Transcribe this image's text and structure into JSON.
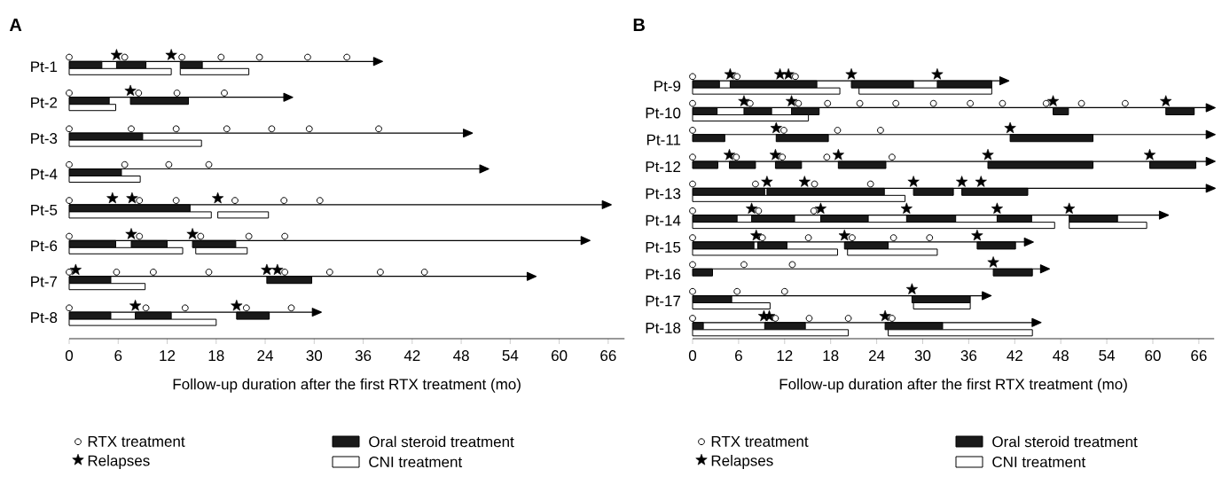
{
  "chart_data": [
    {
      "type": "bar",
      "orientation": "horizontal",
      "title": "A",
      "xlabel": "Follow-up duration after the first RTX treatment (mo)",
      "legend": "bottom",
      "categories": [
        "Pt-1",
        "Pt-2",
        "Pt-3",
        "Pt-4",
        "Pt-5",
        "Pt-6",
        "Pt-7",
        "Pt-8"
      ],
      "xlim": [
        0,
        68
      ],
      "xticks": [
        0,
        6,
        12,
        18,
        24,
        30,
        36,
        42,
        48,
        54,
        60,
        66
      ],
      "series": [
        {
          "type": "lollipop",
          "marker": "triangle",
          "color": "#000000",
          "values": [
            37.5,
            26.5,
            48.5,
            50.5,
            65.5,
            62.9,
            56.3,
            30.0
          ]
        },
        {
          "type": "bar",
          "name": "Oral steroid treatment",
          "color": "#1a1a1a",
          "base": [
            0,
            0,
            0,
            0,
            0,
            0,
            0,
            0
          ],
          "values": [
            4.0,
            4.9,
            9.0,
            6.4,
            14.8,
            5.7,
            5.1,
            5.1
          ]
        },
        {
          "type": "bar",
          "color": "#1a1a1a",
          "base": [
            5.8,
            7.5,
            null,
            null,
            null,
            7.6,
            24.2,
            8.1
          ],
          "values": [
            3.6,
            7.1,
            null,
            null,
            null,
            4.4,
            5.5,
            4.4
          ]
        },
        {
          "type": "bar",
          "color": "#1a1a1a",
          "base": [
            13.6,
            null,
            null,
            null,
            null,
            15.1,
            null,
            20.5
          ],
          "values": [
            2.7,
            null,
            null,
            null,
            null,
            5.3,
            null,
            4.0
          ]
        },
        {
          "type": "bar",
          "name": "CNI treatment",
          "color": "#ffffff",
          "base": [
            0,
            0,
            0,
            0,
            0,
            0,
            0,
            0
          ],
          "values": [
            12.5,
            5.7,
            16.2,
            8.7,
            17.4,
            13.9,
            9.3,
            18.0
          ]
        },
        {
          "type": "bar",
          "color": "#ffffff",
          "base": [
            13.6,
            null,
            null,
            null,
            18.2,
            15.5,
            null,
            null
          ],
          "values": [
            8.4,
            null,
            null,
            null,
            6.2,
            6.3,
            null,
            null
          ]
        },
        {
          "type": "scatter",
          "name": "RTX treatment",
          "marker": "circle",
          "color": "#000000",
          "x": [
            "Pt-1",
            "Pt-1",
            "Pt-1",
            "Pt-1",
            "Pt-1",
            "Pt-1",
            "Pt-1",
            "Pt-2",
            "Pt-2",
            "Pt-2",
            "Pt-2",
            "Pt-3",
            "Pt-3",
            "Pt-3",
            "Pt-3",
            "Pt-3",
            "Pt-3",
            "Pt-3",
            "Pt-4",
            "Pt-4",
            "Pt-4",
            "Pt-4",
            "Pt-5",
            "Pt-5",
            "Pt-5",
            "Pt-5",
            "Pt-5",
            "Pt-5",
            "Pt-6",
            "Pt-6",
            "Pt-6",
            "Pt-6",
            "Pt-6",
            "Pt-7",
            "Pt-7",
            "Pt-7",
            "Pt-7",
            "Pt-7",
            "Pt-7",
            "Pt-7",
            "Pt-7",
            "Pt-8",
            "Pt-8",
            "Pt-8",
            "Pt-8",
            "Pt-8"
          ],
          "values": [
            0,
            6.8,
            13.8,
            18.6,
            23.3,
            29.2,
            34.0,
            0,
            8.5,
            13.2,
            19.0,
            0,
            7.6,
            13.1,
            19.3,
            24.8,
            29.4,
            37.9,
            0,
            6.8,
            12.2,
            17.1,
            0,
            8.6,
            13.1,
            20.3,
            26.3,
            30.7,
            0,
            8.6,
            16.1,
            22.0,
            26.4,
            0,
            5.8,
            10.3,
            17.1,
            26.4,
            31.9,
            38.1,
            43.5,
            0,
            9.4,
            14.2,
            21.7,
            27.2
          ]
        },
        {
          "type": "scatter",
          "name": "Relapses",
          "marker": "star",
          "color": "#000000",
          "x": [
            "Pt-1",
            "Pt-1",
            "Pt-2",
            "Pt-5",
            "Pt-5",
            "Pt-5",
            "Pt-6",
            "Pt-6",
            "Pt-7",
            "Pt-7",
            "Pt-7",
            "Pt-8",
            "Pt-8"
          ],
          "values": [
            5.8,
            12.5,
            7.5,
            5.3,
            7.7,
            18.2,
            7.6,
            15.1,
            0.8,
            24.2,
            25.5,
            8.1,
            20.5
          ]
        }
      ]
    },
    {
      "type": "bar",
      "orientation": "horizontal",
      "title": "B",
      "xlabel": "Follow-up duration after the first RTX treatment (mo)",
      "legend": "bottom",
      "categories": [
        "Pt-9",
        "Pt-10",
        "Pt-11",
        "Pt-12",
        "Pt-13",
        "Pt-14",
        "Pt-15",
        "Pt-16",
        "Pt-17",
        "Pt-18"
      ],
      "xlim": [
        0,
        68
      ],
      "xticks": [
        0,
        6,
        12,
        18,
        24,
        30,
        36,
        42,
        48,
        54,
        60,
        66
      ],
      "series": [
        {
          "type": "lollipop",
          "marker": "triangle",
          "color": "#000000",
          "values": [
            40.3,
            67.2,
            67.2,
            67.2,
            67.2,
            61.1,
            43.5,
            45.6,
            38.0,
            44.5
          ]
        },
        {
          "type": "bar",
          "name": "Oral steroid treatment",
          "color": "#1a1a1a",
          "base": [
            0,
            0,
            0,
            0,
            0,
            0,
            0,
            0,
            0,
            0
          ],
          "values": [
            3.5,
            3.2,
            4.2,
            3.3,
            9.4,
            5.8,
            8.0,
            2.6,
            5.1,
            1.4
          ]
        },
        {
          "type": "bar",
          "color": "#1a1a1a",
          "base": [
            4.9,
            6.7,
            10.9,
            4.8,
            9.7,
            7.7,
            8.5,
            39.2,
            28.6,
            9.4
          ],
          "values": [
            11.3,
            3.6,
            6.8,
            3.4,
            15.3,
            5.6,
            3.8,
            5.1,
            7.6,
            5.3
          ]
        },
        {
          "type": "bar",
          "color": "#1a1a1a",
          "base": [
            20.7,
            12.9,
            41.4,
            10.8,
            28.8,
            16.7,
            19.8,
            null,
            null,
            25.1
          ],
          "values": [
            8.1,
            3.6,
            10.8,
            3.4,
            5.2,
            6.2,
            5.7,
            null,
            null,
            7.5
          ]
        },
        {
          "type": "bar",
          "color": "#1a1a1a",
          "base": [
            31.9,
            47.0,
            null,
            19.0,
            35.1,
            27.9,
            37.1,
            null,
            null,
            null
          ],
          "values": [
            7.1,
            2.0,
            null,
            6.2,
            8.6,
            6.4,
            5.0,
            null,
            null,
            null
          ]
        },
        {
          "type": "bar",
          "color": "#1a1a1a",
          "base": [
            null,
            61.7,
            null,
            38.5,
            null,
            39.7,
            null,
            null,
            null,
            null
          ],
          "values": [
            null,
            3.7,
            null,
            13.7,
            null,
            4.5,
            null,
            null,
            null,
            null
          ]
        },
        {
          "type": "bar",
          "color": "#1a1a1a",
          "base": [
            null,
            null,
            null,
            59.6,
            null,
            49.1,
            null,
            null,
            null,
            null
          ],
          "values": [
            null,
            null,
            null,
            6.0,
            null,
            6.3,
            null,
            null,
            null,
            null
          ]
        },
        {
          "type": "bar",
          "name": "CNI treatment",
          "color": "#ffffff",
          "base": [
            0,
            0,
            null,
            null,
            0,
            0,
            0,
            null,
            0,
            0
          ],
          "values": [
            19.2,
            15.1,
            null,
            null,
            27.7,
            47.2,
            18.9,
            null,
            10.1,
            20.3
          ]
        },
        {
          "type": "bar",
          "color": "#ffffff",
          "base": [
            21.7,
            null,
            null,
            null,
            null,
            49.1,
            20.2,
            null,
            28.8,
            25.5
          ],
          "values": [
            17.3,
            null,
            null,
            null,
            null,
            10.1,
            11.7,
            null,
            7.4,
            18.8
          ]
        },
        {
          "type": "scatter",
          "name": "RTX treatment",
          "marker": "circle",
          "color": "#000000",
          "x": [
            "Pt-9",
            "Pt-9",
            "Pt-9",
            "Pt-10",
            "Pt-10",
            "Pt-10",
            "Pt-10",
            "Pt-10",
            "Pt-10",
            "Pt-10",
            "Pt-10",
            "Pt-10",
            "Pt-10",
            "Pt-10",
            "Pt-10",
            "Pt-11",
            "Pt-11",
            "Pt-11",
            "Pt-11",
            "Pt-12",
            "Pt-12",
            "Pt-12",
            "Pt-12",
            "Pt-12",
            "Pt-13",
            "Pt-13",
            "Pt-13",
            "Pt-13",
            "Pt-14",
            "Pt-14",
            "Pt-14",
            "Pt-15",
            "Pt-15",
            "Pt-15",
            "Pt-15",
            "Pt-15",
            "Pt-15",
            "Pt-16",
            "Pt-16",
            "Pt-16",
            "Pt-17",
            "Pt-17",
            "Pt-17",
            "Pt-18",
            "Pt-18",
            "Pt-18",
            "Pt-18",
            "Pt-18"
          ],
          "values": [
            0,
            5.8,
            13.4,
            0,
            7.5,
            13.8,
            17.6,
            21.8,
            26.5,
            31.4,
            36.2,
            40.4,
            46.1,
            50.7,
            56.4,
            0,
            11.9,
            18.9,
            24.5,
            0,
            5.7,
            11.7,
            17.5,
            26.0,
            0,
            8.2,
            15.9,
            23.2,
            0,
            8.6,
            15.8,
            0,
            9.1,
            15.1,
            20.8,
            26.2,
            30.9,
            0,
            6.7,
            13.0,
            0,
            5.8,
            12.0,
            0,
            10.8,
            15.2,
            20.3,
            26.0
          ]
        },
        {
          "type": "scatter",
          "name": "Relapses",
          "marker": "star",
          "color": "#000000",
          "x": [
            "Pt-9",
            "Pt-9",
            "Pt-9",
            "Pt-9",
            "Pt-9",
            "Pt-10",
            "Pt-10",
            "Pt-10",
            "Pt-10",
            "Pt-11",
            "Pt-11",
            "Pt-12",
            "Pt-12",
            "Pt-12",
            "Pt-12",
            "Pt-12",
            "Pt-13",
            "Pt-13",
            "Pt-13",
            "Pt-13",
            "Pt-13",
            "Pt-14",
            "Pt-14",
            "Pt-14",
            "Pt-14",
            "Pt-14",
            "Pt-15",
            "Pt-15",
            "Pt-15",
            "Pt-16",
            "Pt-17",
            "Pt-18",
            "Pt-18",
            "Pt-18"
          ],
          "values": [
            4.9,
            11.4,
            12.5,
            20.7,
            31.9,
            6.7,
            12.9,
            47.0,
            61.7,
            10.9,
            41.4,
            4.8,
            10.8,
            19.0,
            38.5,
            59.6,
            9.7,
            14.6,
            28.8,
            35.1,
            37.6,
            7.7,
            16.7,
            27.9,
            39.7,
            49.1,
            8.3,
            19.8,
            37.1,
            39.2,
            28.6,
            9.3,
            10.0,
            25.1
          ]
        }
      ]
    }
  ]
}
